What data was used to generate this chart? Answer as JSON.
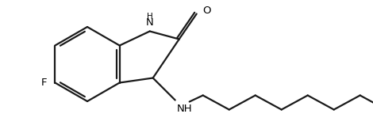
{
  "background_color": "#ffffff",
  "line_color": "#1a1a1a",
  "line_width": 1.6,
  "text_color": "#000000",
  "font_size": 8.5,
  "figsize": [
    4.7,
    1.63
  ],
  "dpi": 100,
  "xlim": [
    0,
    470
  ],
  "ylim": [
    0,
    163
  ]
}
